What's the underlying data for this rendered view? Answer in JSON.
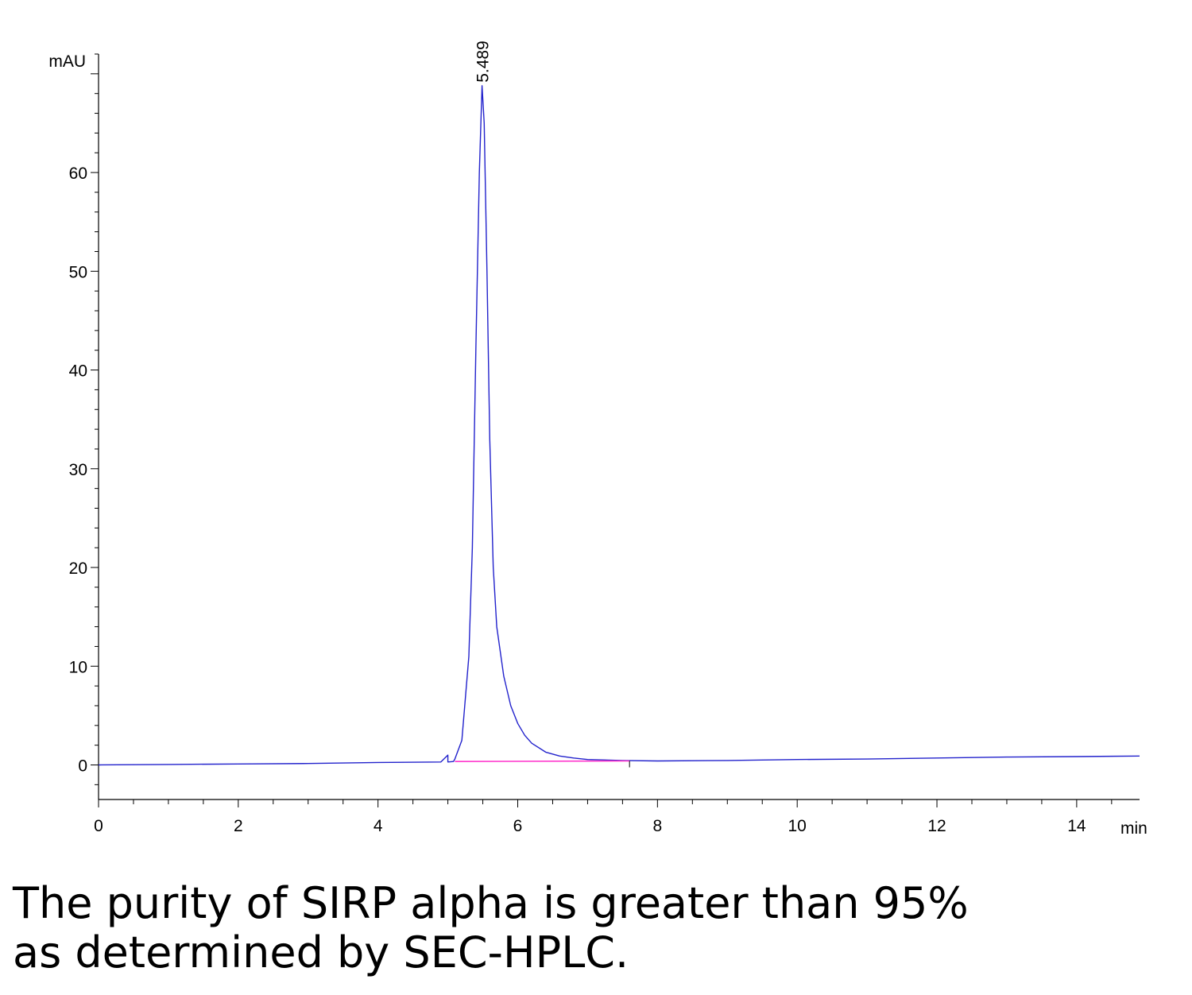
{
  "chart_data": {
    "type": "line",
    "title": "",
    "xlabel": "min",
    "ylabel": "mAU",
    "xlim": [
      0,
      14.9
    ],
    "ylim": [
      -3.5,
      72
    ],
    "x_ticks": [
      0,
      2,
      4,
      6,
      8,
      10,
      12,
      14
    ],
    "y_ticks": [
      0,
      10,
      20,
      30,
      40,
      50,
      60
    ],
    "grid": false,
    "peak_annotation": {
      "x": 5.489,
      "y": 68.8,
      "label": "5.489"
    },
    "series": [
      {
        "color": "#2222cc",
        "x": [
          0,
          1,
          2,
          3,
          4,
          4.9,
          5.0,
          5.0,
          5.08,
          5.1,
          5.2,
          5.3,
          5.35,
          5.4,
          5.45,
          5.489,
          5.52,
          5.56,
          5.6,
          5.65,
          5.7,
          5.8,
          5.9,
          6.0,
          6.1,
          6.2,
          6.4,
          6.6,
          6.8,
          7.0,
          7.5,
          8.0,
          9.0,
          10.0,
          11.0,
          12.0,
          13.0,
          14.0,
          14.9
        ],
        "y": [
          0.0,
          0.05,
          0.1,
          0.15,
          0.25,
          0.3,
          1.0,
          0.3,
          0.35,
          0.6,
          2.5,
          11.0,
          22.0,
          42.0,
          60.0,
          68.8,
          65.0,
          50.0,
          33.0,
          20.0,
          14.0,
          9.0,
          6.0,
          4.2,
          3.0,
          2.2,
          1.3,
          0.9,
          0.7,
          0.55,
          0.45,
          0.4,
          0.45,
          0.55,
          0.6,
          0.7,
          0.8,
          0.85,
          0.9
        ]
      },
      {
        "color": "#ff33cc",
        "x": [
          5.1,
          7.6
        ],
        "y": [
          0.35,
          0.4
        ]
      }
    ]
  },
  "caption": {
    "line1": "The purity of SIRP alpha is greater than 95%",
    "line2": "as determined by SEC-HPLC."
  }
}
